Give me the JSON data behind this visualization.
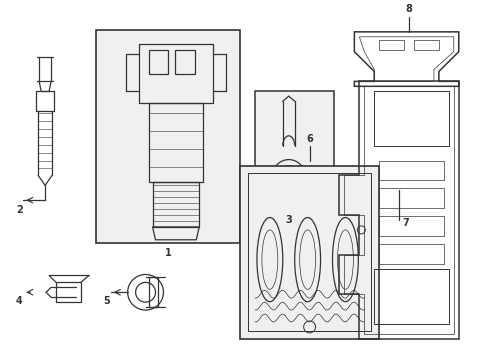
{
  "bg_color": "#ffffff",
  "line_color": "#333333",
  "fig_width": 4.89,
  "fig_height": 3.6,
  "dpi": 100
}
